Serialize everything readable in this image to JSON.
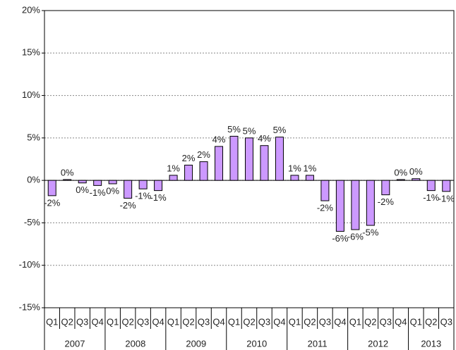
{
  "chart_data": {
    "type": "bar",
    "categories": [
      "Q1",
      "Q2",
      "Q3",
      "Q4",
      "Q1",
      "Q2",
      "Q3",
      "Q4",
      "Q1",
      "Q2",
      "Q3",
      "Q4",
      "Q1",
      "Q2",
      "Q3",
      "Q4",
      "Q1",
      "Q2",
      "Q3",
      "Q4",
      "Q1",
      "Q2",
      "Q3",
      "Q4",
      "Q1",
      "Q2",
      "Q3"
    ],
    "x_groups": [
      "2007",
      "2008",
      "2009",
      "2010",
      "2011",
      "2012",
      "2013"
    ],
    "values": [
      -1.8,
      0.1,
      -0.3,
      -0.6,
      -0.4,
      -2.1,
      -1.0,
      -1.2,
      0.6,
      1.8,
      2.2,
      4.0,
      5.2,
      5.0,
      4.1,
      5.1,
      0.6,
      0.6,
      -2.4,
      -6.0,
      -5.8,
      -5.3,
      -1.7,
      0.1,
      0.2,
      -1.2,
      -1.3
    ],
    "value_labels": [
      "-2%",
      "0%",
      "0%",
      "-1%",
      "0%",
      "-2%",
      "-1%",
      "-1%",
      "1%",
      "2%",
      "2%",
      "4%",
      "5%",
      "5%",
      "4%",
      "5%",
      "1%",
      "1%",
      "-2%",
      "-6%",
      "-6%",
      "-5%",
      "-2%",
      "0%",
      "0%",
      "-1%",
      "-1%"
    ],
    "color": "#cc99ff",
    "ylim": [
      -15,
      20
    ],
    "yticks": [
      {
        "value": -15,
        "label": "-15%"
      },
      {
        "value": -10,
        "label": "-10%"
      },
      {
        "value": -5,
        "label": "-5%"
      },
      {
        "value": 0,
        "label": "0%"
      },
      {
        "value": 5,
        "label": "5%"
      },
      {
        "value": 10,
        "label": "10%"
      },
      {
        "value": 15,
        "label": "15%"
      },
      {
        "value": 20,
        "label": "20%"
      }
    ],
    "grid": true
  }
}
